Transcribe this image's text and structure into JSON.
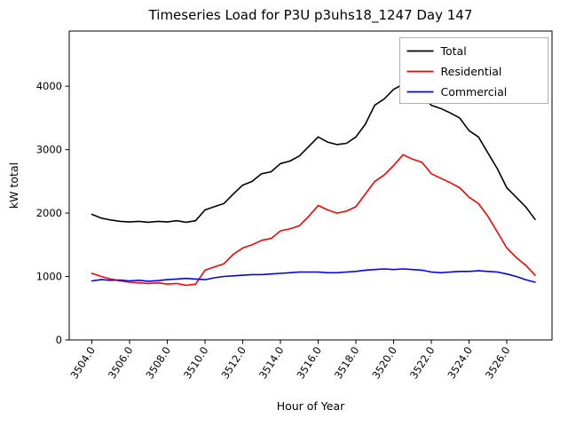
{
  "figure": {
    "background": "#ffffff"
  },
  "chart_data": {
    "type": "line",
    "title": "Timeseries Load for P3U p3uhs18_1247  Day 147",
    "xlabel": "Hour of Year",
    "ylabel": "kW total",
    "xlim": [
      3502.8,
      3528.4
    ],
    "ylim": [
      0,
      4870
    ],
    "grid": false,
    "xticks": [
      3504,
      3506,
      3508,
      3510,
      3512,
      3514,
      3516,
      3518,
      3520,
      3522,
      3524,
      3526
    ],
    "xtick_labels": [
      "3504.0",
      "3506.0",
      "3508.0",
      "3510.0",
      "3512.0",
      "3514.0",
      "3516.0",
      "3518.0",
      "3520.0",
      "3522.0",
      "3524.0",
      "3526.0"
    ],
    "yticks": [
      0,
      1000,
      2000,
      3000,
      4000
    ],
    "ytick_labels": [
      "0",
      "1000",
      "2000",
      "3000",
      "4000"
    ],
    "legend": {
      "position": "upper right",
      "entries": [
        "Total",
        "Residential",
        "Commercial"
      ]
    },
    "x": [
      3504.0,
      3504.5,
      3505.0,
      3505.5,
      3506.0,
      3506.5,
      3507.0,
      3507.5,
      3508.0,
      3508.5,
      3509.0,
      3509.5,
      3510.0,
      3510.5,
      3511.0,
      3511.5,
      3512.0,
      3512.5,
      3513.0,
      3513.5,
      3514.0,
      3514.5,
      3515.0,
      3515.5,
      3516.0,
      3516.5,
      3517.0,
      3517.5,
      3518.0,
      3518.5,
      3519.0,
      3519.5,
      3520.0,
      3520.5,
      3521.0,
      3521.5,
      3522.0,
      3522.5,
      3523.0,
      3523.5,
      3524.0,
      3524.5,
      3525.0,
      3525.5,
      3526.0,
      3526.5,
      3527.0,
      3527.5
    ],
    "series": [
      {
        "name": "Total",
        "color": "#000000",
        "values": [
          1980,
          1920,
          1890,
          1870,
          1860,
          1870,
          1855,
          1870,
          1860,
          1880,
          1855,
          1880,
          2050,
          2100,
          2150,
          2300,
          2440,
          2500,
          2620,
          2650,
          2780,
          2820,
          2900,
          3050,
          3200,
          3120,
          3080,
          3100,
          3200,
          3400,
          3700,
          3800,
          3950,
          4030,
          3900,
          3850,
          3700,
          3650,
          3580,
          3500,
          3300,
          3200,
          2950,
          2700,
          2400,
          2250,
          2100,
          1900
        ]
      },
      {
        "name": "Residential",
        "color": "#ff0000",
        "values": [
          1050,
          1000,
          960,
          930,
          910,
          900,
          890,
          900,
          880,
          890,
          860,
          880,
          1100,
          1150,
          1200,
          1350,
          1450,
          1500,
          1570,
          1600,
          1720,
          1750,
          1800,
          1950,
          2120,
          2050,
          2000,
          2030,
          2100,
          2300,
          2500,
          2600,
          2750,
          2920,
          2850,
          2800,
          2620,
          2550,
          2480,
          2400,
          2250,
          2150,
          1950,
          1700,
          1450,
          1300,
          1180,
          1020
        ]
      },
      {
        "name": "Commercial",
        "color": "#0000ff",
        "values": [
          930,
          950,
          940,
          945,
          930,
          940,
          925,
          935,
          950,
          960,
          970,
          960,
          950,
          980,
          1000,
          1010,
          1020,
          1030,
          1030,
          1040,
          1050,
          1060,
          1070,
          1070,
          1070,
          1060,
          1060,
          1070,
          1080,
          1100,
          1110,
          1120,
          1110,
          1120,
          1110,
          1100,
          1070,
          1060,
          1070,
          1080,
          1080,
          1090,
          1080,
          1070,
          1040,
          1000,
          950,
          910
        ]
      }
    ]
  }
}
